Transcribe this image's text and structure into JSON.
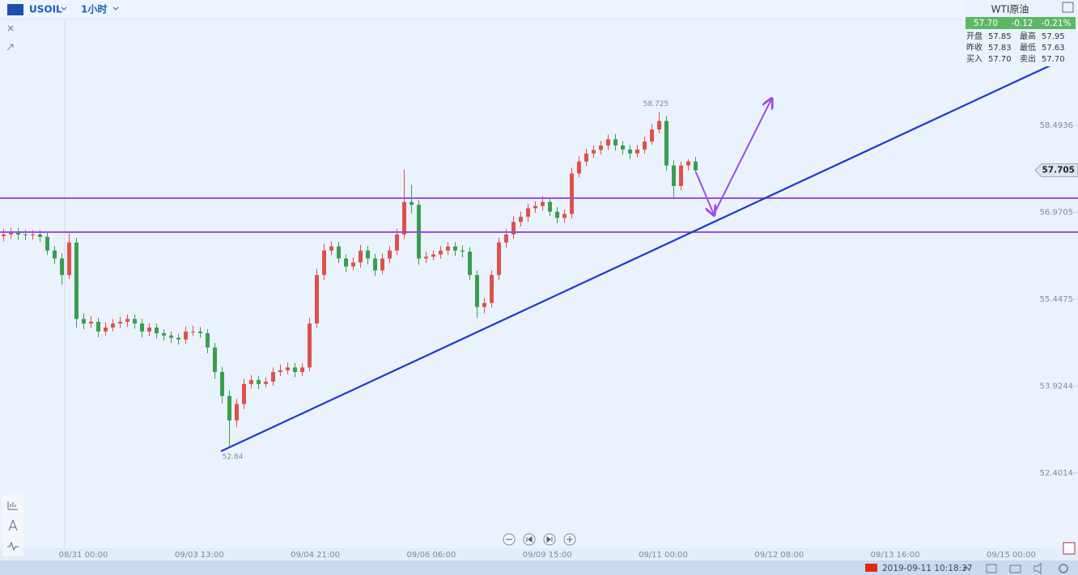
{
  "top_bar": {
    "symbol": "USOIL",
    "interval": "1小时"
  },
  "chart_data": {
    "type": "candlestick",
    "x_labels": [
      "08/31 00:00",
      "09/03 13:00",
      "09/04 21:00",
      "09/06 06:00",
      "09/09 15:00",
      "09/11 00:00",
      "09/12 08:00",
      "09/13 16:00",
      "09/15 00:00"
    ],
    "open": [
      56.55,
      56.58,
      56.61,
      56.58,
      56.57,
      56.58,
      56.54,
      56.3,
      56.16,
      55.87,
      56.44,
      55.1,
      55.02,
      55.05,
      54.88,
      54.95,
      55.02,
      55.05,
      55.1,
      55.02,
      54.88,
      54.95,
      54.85,
      54.81,
      54.77,
      54.74,
      54.88,
      54.88,
      54.85,
      54.6,
      54.17,
      53.75,
      53.32,
      53.61,
      53.96,
      54.03,
      53.96,
      54.0,
      54.17,
      54.2,
      54.25,
      54.17,
      54.25,
      55.02,
      55.87,
      56.3,
      56.37,
      56.16,
      56.02,
      56.09,
      56.3,
      56.16,
      55.95,
      56.16,
      56.3,
      56.58,
      57.15,
      57.1,
      56.16,
      56.19,
      56.23,
      56.3,
      56.37,
      56.3,
      56.28,
      55.87,
      55.31,
      55.38,
      55.87,
      56.44,
      56.58,
      56.8,
      56.89,
      57.04,
      57.08,
      57.15,
      56.98,
      56.87,
      56.94,
      57.65,
      57.86,
      58.0,
      58.06,
      58.14,
      58.25,
      58.14,
      58.07,
      58.0,
      58.07,
      58.21,
      58.42,
      58.57,
      57.79,
      57.43,
      57.79,
      57.86
    ],
    "high": [
      56.68,
      56.7,
      56.7,
      56.66,
      56.66,
      56.66,
      56.62,
      56.38,
      56.25,
      56.6,
      56.52,
      55.2,
      55.15,
      55.12,
      55.04,
      55.1,
      55.14,
      55.18,
      55.18,
      55.1,
      55.03,
      55.02,
      54.92,
      54.88,
      54.84,
      54.97,
      54.98,
      54.96,
      54.92,
      54.68,
      54.26,
      53.85,
      53.7,
      54.05,
      54.12,
      54.1,
      54.08,
      54.25,
      54.3,
      54.34,
      54.33,
      54.33,
      55.12,
      55.98,
      56.42,
      56.46,
      56.45,
      56.24,
      56.18,
      56.4,
      56.38,
      56.24,
      56.25,
      56.38,
      56.68,
      57.72,
      57.45,
      57.18,
      56.28,
      56.3,
      56.38,
      56.45,
      56.45,
      56.39,
      56.36,
      55.95,
      55.47,
      55.95,
      56.52,
      56.68,
      56.9,
      56.98,
      57.12,
      57.16,
      57.25,
      57.22,
      57.06,
      57.02,
      57.75,
      57.95,
      58.08,
      58.14,
      58.22,
      58.33,
      58.34,
      58.22,
      58.15,
      58.15,
      58.3,
      58.52,
      58.725,
      58.66,
      57.88,
      57.86,
      57.9,
      57.94
    ],
    "low": [
      56.46,
      56.5,
      56.49,
      56.48,
      56.49,
      56.45,
      56.22,
      56.06,
      55.7,
      55.8,
      54.95,
      54.92,
      54.94,
      54.78,
      54.8,
      54.88,
      54.94,
      54.96,
      54.93,
      54.78,
      54.8,
      54.76,
      54.72,
      54.68,
      54.65,
      54.66,
      54.8,
      54.77,
      54.5,
      54.05,
      53.62,
      52.84,
      53.2,
      53.52,
      53.88,
      53.87,
      53.9,
      53.93,
      54.1,
      54.13,
      54.08,
      54.1,
      54.18,
      54.95,
      55.78,
      56.22,
      56.08,
      55.92,
      55.95,
      56.0,
      56.06,
      55.85,
      55.88,
      56.08,
      56.22,
      56.5,
      56.95,
      56.05,
      56.08,
      56.13,
      56.15,
      56.22,
      56.2,
      56.18,
      55.78,
      55.12,
      55.2,
      55.3,
      55.78,
      56.35,
      56.5,
      56.72,
      56.8,
      56.96,
      57.0,
      56.9,
      56.78,
      56.78,
      56.86,
      57.58,
      57.78,
      57.92,
      57.98,
      58.06,
      58.05,
      57.98,
      57.9,
      57.93,
      58.0,
      58.15,
      58.35,
      57.7,
      57.2,
      57.35,
      57.7,
      57.65
    ],
    "close": [
      56.58,
      56.61,
      56.58,
      56.57,
      56.58,
      56.54,
      56.3,
      56.16,
      55.87,
      56.44,
      55.1,
      55.02,
      55.05,
      54.88,
      54.95,
      55.02,
      55.05,
      55.1,
      55.02,
      54.88,
      54.95,
      54.85,
      54.81,
      54.77,
      54.74,
      54.88,
      54.88,
      54.85,
      54.6,
      54.17,
      53.75,
      53.32,
      53.61,
      53.96,
      54.03,
      53.96,
      54.0,
      54.17,
      54.2,
      54.25,
      54.17,
      54.25,
      55.02,
      55.87,
      56.3,
      56.37,
      56.16,
      56.02,
      56.09,
      56.3,
      56.16,
      55.95,
      56.16,
      56.3,
      56.58,
      57.15,
      57.1,
      56.16,
      56.19,
      56.23,
      56.3,
      56.37,
      56.3,
      56.28,
      55.87,
      55.31,
      55.38,
      55.87,
      56.44,
      56.58,
      56.8,
      56.89,
      57.04,
      57.08,
      57.15,
      56.98,
      56.87,
      56.94,
      57.65,
      57.86,
      58.0,
      58.06,
      58.14,
      58.25,
      58.14,
      58.07,
      58.0,
      58.07,
      58.21,
      58.42,
      58.57,
      57.79,
      57.43,
      57.79,
      57.86,
      57.705
    ],
    "up_color": "#e0504a",
    "down_color": "#3a9d50",
    "ylim": [
      51.08,
      60.69
    ],
    "yticks": [
      58.4936,
      56.9705,
      55.4475,
      53.9244,
      52.4014
    ]
  },
  "quote_panel": {
    "title": "WTI原油",
    "price": "57.70",
    "change": "-0.12",
    "change_pct": "-0.21%",
    "rows": [
      [
        "开盘",
        "57.85",
        "最高",
        "57.95"
      ],
      [
        "昨收",
        "57.83",
        "最低",
        "57.63"
      ],
      [
        "买入",
        "57.70",
        "卖出",
        "57.70"
      ]
    ]
  },
  "status_bar": {
    "datetime": "2019-09-11 10:18:37"
  }
}
